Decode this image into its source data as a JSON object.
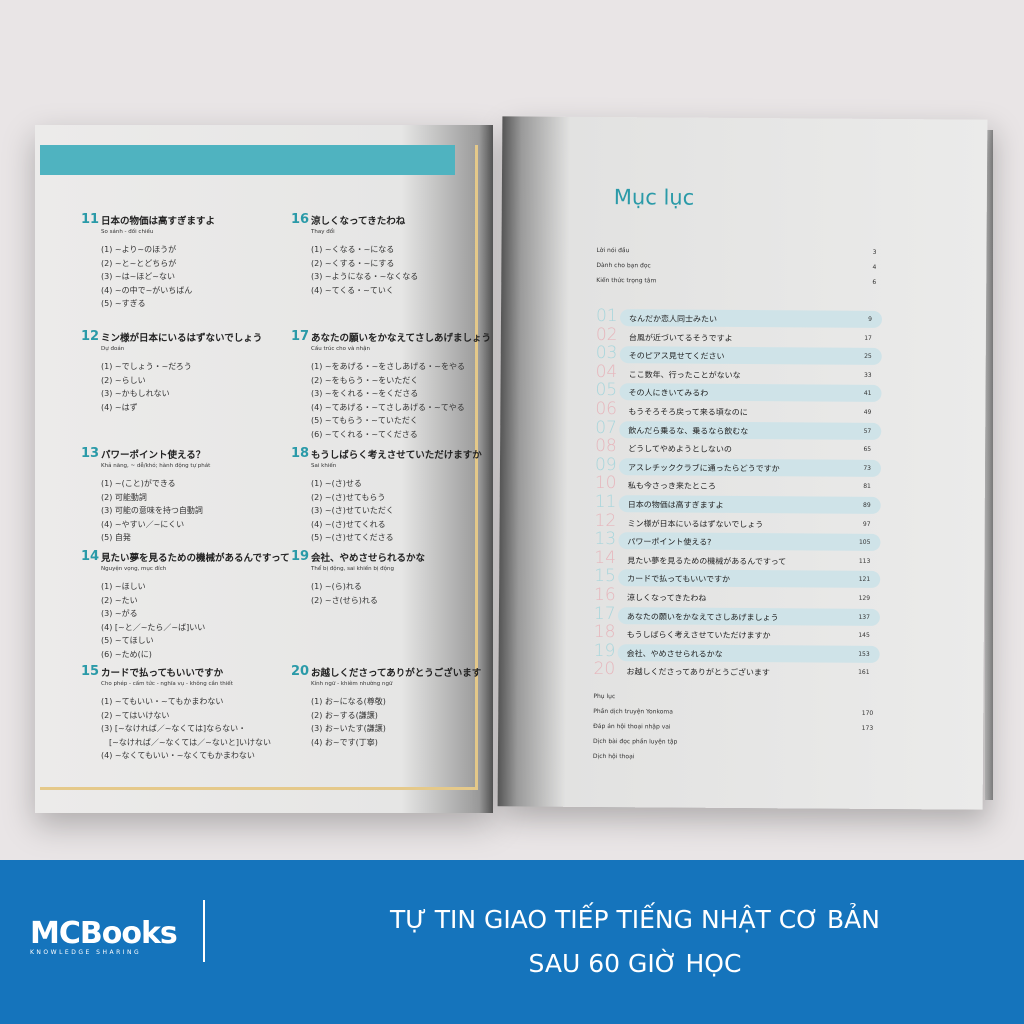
{
  "left_page": {
    "sections": [
      {
        "num": "11",
        "title": "日本の物価は高すぎますよ",
        "subtitle": "So sánh - đối chiếu",
        "items": [
          "(1) ~より~のほうが",
          "(2) ~と~とどちらが",
          "(3) ~は~ほど~ない",
          "(4) ~の中で~がいちばん",
          "(5) ~すぎる"
        ]
      },
      {
        "num": "12",
        "title": "ミン様が日本にいるはずないでしょう",
        "subtitle": "Dự đoán",
        "items": [
          "(1) ~でしょう・~だろう",
          "(2) ~らしい",
          "(3) ~かもしれない",
          "(4) ~はず"
        ]
      },
      {
        "num": "13",
        "title": "パワーポイント使える？",
        "subtitle": "Khả năng, ~ dễ/khó; hành động tự phát",
        "items": [
          "(1) ~(こと)ができる",
          "(2) 可能動詞",
          "(3) 可能の意味を持つ自動詞",
          "(4) ~やすい／~にくい",
          "(5) 自発"
        ]
      },
      {
        "num": "14",
        "title": "見たい夢を見るための機械があるんですって",
        "subtitle": "Nguyện vọng, mục đích",
        "items": [
          "(1) ~ほしい",
          "(2) ~たい",
          "(3) ~がる",
          "(4) [~と／~たら／~ば]いい",
          "(5) ~てほしい",
          "(6) ~ため(に)"
        ]
      },
      {
        "num": "15",
        "title": "カードで払ってもいいですか",
        "subtitle": "Cho phép - cấm tức - nghĩa vụ - không cần thiết",
        "items": [
          "(1) ~てもいい・~てもかまわない",
          "(2) ~てはいけない",
          "(3) [~なければ／~なくては]ならない・",
          "　[~なければ／~なくては／~ないと]いけない",
          "(4) ~なくてもいい・~なくてもかまわない"
        ]
      },
      {
        "num": "16",
        "title": "涼しくなってきたわね",
        "subtitle": "Thay đổi",
        "items": [
          "(1) ~くなる・~になる",
          "(2) ~くする・~にする",
          "(3) ~ようになる・~なくなる",
          "(4) ~てくる・~ていく"
        ]
      },
      {
        "num": "17",
        "title": "あなたの願いをかなえてさしあげましょう",
        "subtitle": "Cấu trúc cho và nhận",
        "items": [
          "(1) ~をあげる・~をさしあげる・~をやる",
          "(2) ~をもらう・~をいただく",
          "(3) ~をくれる・~をくださる",
          "(4) ~てあげる・~てさしあげる・~てやる",
          "(5) ~てもらう・~ていただく",
          "(6) ~てくれる・~てくださる"
        ]
      },
      {
        "num": "18",
        "title": "もうしばらく考えさせていただけますか",
        "subtitle": "Sai khiến",
        "items": [
          "(1) ~(さ)せる",
          "(2) ~(さ)せてもらう",
          "(3) ~(さ)せていただく",
          "(4) ~(さ)せてくれる",
          "(5) ~(さ)せてくださる"
        ]
      },
      {
        "num": "19",
        "title": "会社、やめさせられるかな",
        "subtitle": "Thể bị động, sai khiến bị động",
        "items": [
          "(1) ~(ら)れる",
          "(2) ~さ(せら)れる"
        ]
      },
      {
        "num": "20",
        "title": "お越しくださってありがとうございます",
        "subtitle": "Kính ngữ - khiêm nhường ngữ",
        "items": [
          "(1) お~になる(尊敬)",
          "(2) お~する(謙譲)",
          "(3) お~いたす(謙譲)",
          "(4) お~です(丁寧)"
        ]
      }
    ]
  },
  "right_page": {
    "title": "Mục lục",
    "intro": [
      {
        "label": "Lời nói đầu",
        "page": "3"
      },
      {
        "label": "Dành cho bạn đọc",
        "page": "4"
      },
      {
        "label": "Kiến thức trọng tâm",
        "page": "6"
      }
    ],
    "lessons": [
      {
        "num": "01",
        "title": "なんだか恋人同士みたい",
        "page": "9"
      },
      {
        "num": "02",
        "title": "台風が近づいてるそうですよ",
        "page": "17"
      },
      {
        "num": "03",
        "title": "そのピアス見せてください",
        "page": "25"
      },
      {
        "num": "04",
        "title": "ここ数年、行ったことがないな",
        "page": "33"
      },
      {
        "num": "05",
        "title": "その人にきいてみるわ",
        "page": "41"
      },
      {
        "num": "06",
        "title": "もうそろそろ戻って来る頃なのに",
        "page": "49"
      },
      {
        "num": "07",
        "title": "飲んだら乗るな、乗るなら飲むな",
        "page": "57"
      },
      {
        "num": "08",
        "title": "どうしてやめようとしないの",
        "page": "65"
      },
      {
        "num": "09",
        "title": "アスレチッククラブに通ったらどうですか",
        "page": "73"
      },
      {
        "num": "10",
        "title": "私も今さっき来たところ",
        "page": "81"
      },
      {
        "num": "11",
        "title": "日本の物価は高すぎますよ",
        "page": "89"
      },
      {
        "num": "12",
        "title": "ミン様が日本にいるはずないでしょう",
        "page": "97"
      },
      {
        "num": "13",
        "title": "パワーポイント使える?",
        "page": "105"
      },
      {
        "num": "14",
        "title": "見たい夢を見るための機械があるんですって",
        "page": "113"
      },
      {
        "num": "15",
        "title": "カードで払ってもいいですか",
        "page": "121"
      },
      {
        "num": "16",
        "title": "涼しくなってきたわね",
        "page": "129"
      },
      {
        "num": "17",
        "title": "あなたの願いをかなえてさしあげましょう",
        "page": "137"
      },
      {
        "num": "18",
        "title": "もうしばらく考えさせていただけますか",
        "page": "145"
      },
      {
        "num": "19",
        "title": "会社、やめさせられるかな",
        "page": "153"
      },
      {
        "num": "20",
        "title": "お越しくださってありがとうございます",
        "page": "161"
      }
    ],
    "appendix": [
      {
        "label": "Phụ lục",
        "page": ""
      },
      {
        "label": "Phần dịch truyện Yonkoma",
        "page": "170"
      },
      {
        "label": "Đáp án hội thoại nhập vai",
        "page": "173"
      },
      {
        "label": "Dịch bài đọc phần luyện tập",
        "page": ""
      },
      {
        "label": "Dịch hội thoại",
        "page": ""
      }
    ]
  },
  "banner": {
    "logo_main": "MCBooks",
    "logo_sub": "KNOWLEDGE SHARING",
    "slogan_line1": "TỰ TIN GIAO TIẾP TIẾNG NHẬT CƠ BẢN",
    "slogan_line2": "SAU 60 GIỜ HỌC",
    "color": "#1574bc"
  }
}
